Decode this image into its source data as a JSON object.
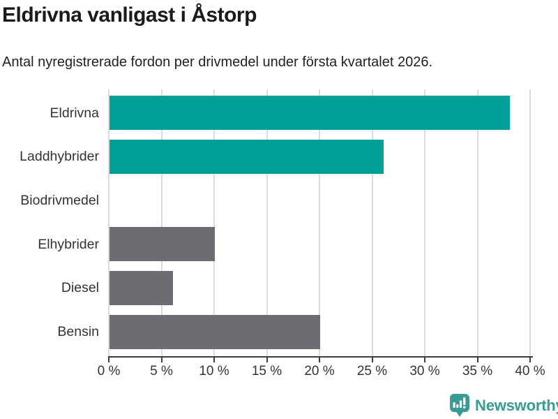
{
  "header": {
    "title": "Eldrivna vanligast i Åstorp",
    "subtitle": "Antal nyregistrerade fordon per drivmedel under första kvartalet 2026."
  },
  "chart_data": {
    "type": "bar",
    "orientation": "horizontal",
    "title": "Eldrivna vanligast i Åstorp",
    "subtitle": "Antal nyregistrerade fordon per drivmedel under första kvartalet 2026.",
    "categories": [
      "Eldrivna",
      "Laddhybrider",
      "Biodrivmedel",
      "Elhybrider",
      "Diesel",
      "Bensin"
    ],
    "values": [
      38,
      26,
      0,
      10,
      6,
      20
    ],
    "unit": "%",
    "bar_colors": [
      "#00a099",
      "#00a099",
      "#6c6c72",
      "#6c6c72",
      "#6c6c72",
      "#6c6c72"
    ],
    "xlim": [
      0,
      40
    ],
    "xtick_step": 5,
    "xtick_labels": [
      "0 %",
      "5 %",
      "10 %",
      "15 %",
      "20 %",
      "25 %",
      "30 %",
      "35 %",
      "40 %"
    ],
    "grid": "vertical",
    "legend": "none",
    "xlabel": "",
    "ylabel": ""
  },
  "colors": {
    "bar_highlight": "#00a099",
    "bar_default": "#6c6c72",
    "gridline": "#dcdcdc",
    "axis": "#3d3d3d",
    "text": "#333333",
    "title": "#1a1a1a",
    "brand": "#3a9b94"
  },
  "footer": {
    "brand": "Newsworthy"
  }
}
